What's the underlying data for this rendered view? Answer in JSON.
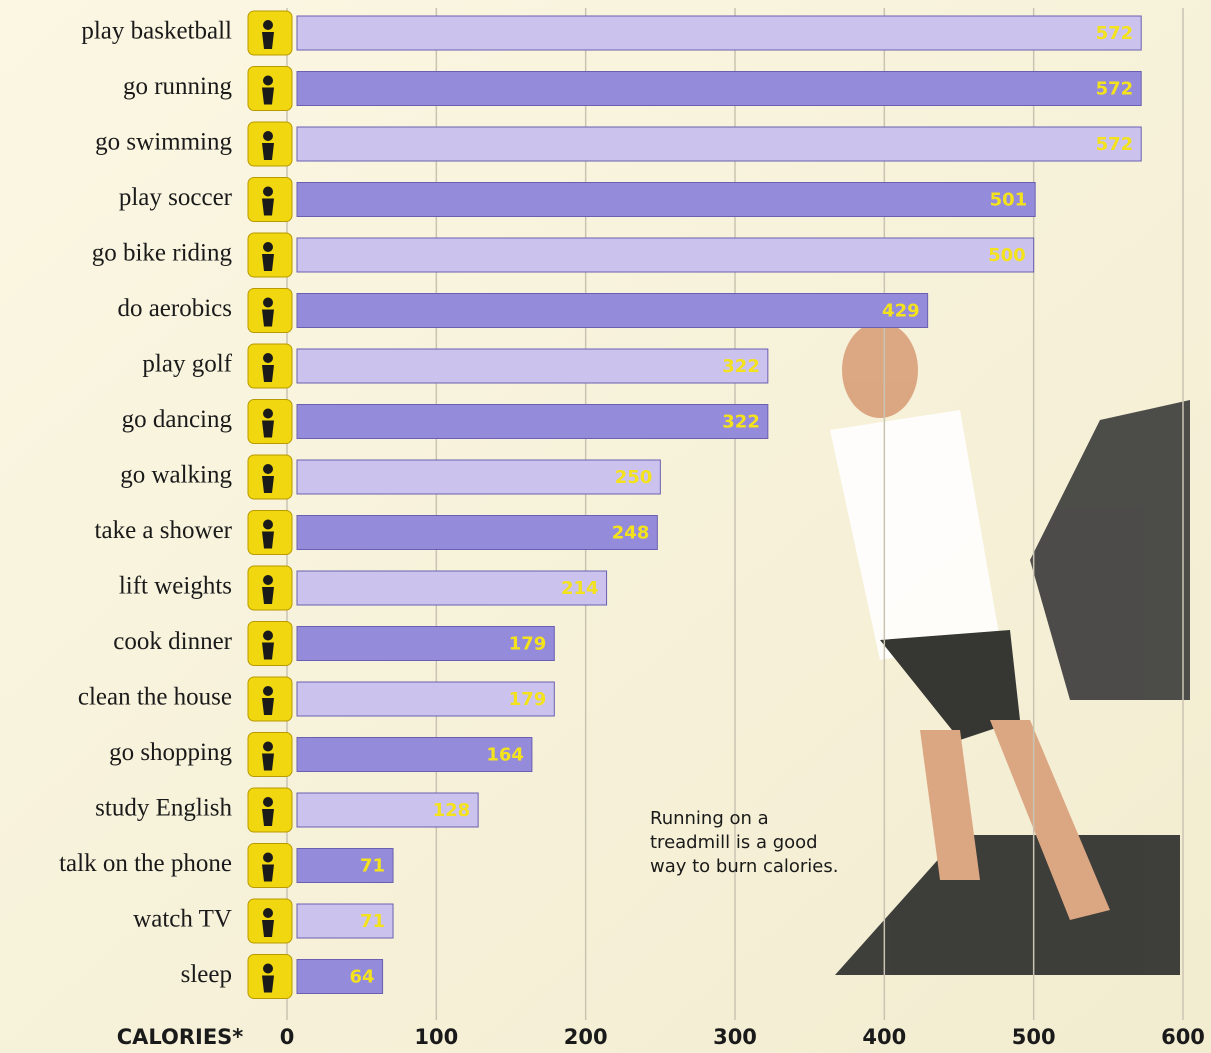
{
  "chart_data": {
    "type": "barh",
    "categories": [
      "play basketball",
      "go running",
      "go swimming",
      "play soccer",
      "go bike riding",
      "do aerobics",
      "play golf",
      "go dancing",
      "go walking",
      "take a shower",
      "lift weights",
      "cook dinner",
      "clean the house",
      "go shopping",
      "study English",
      "talk on the phone",
      "watch TV",
      "sleep"
    ],
    "values": [
      572,
      572,
      572,
      501,
      500,
      429,
      322,
      322,
      250,
      248,
      214,
      179,
      179,
      164,
      128,
      71,
      71,
      64
    ],
    "colors": [
      "#cbc3ee",
      "#958bdb"
    ],
    "xlabel": "CALORIES*",
    "xlim": [
      0,
      600
    ],
    "xticks": [
      0,
      100,
      200,
      300,
      400,
      500,
      600
    ],
    "grid": true,
    "annotation": [
      "Running on a",
      "treadmill is a good",
      "way to burn calories."
    ]
  }
}
